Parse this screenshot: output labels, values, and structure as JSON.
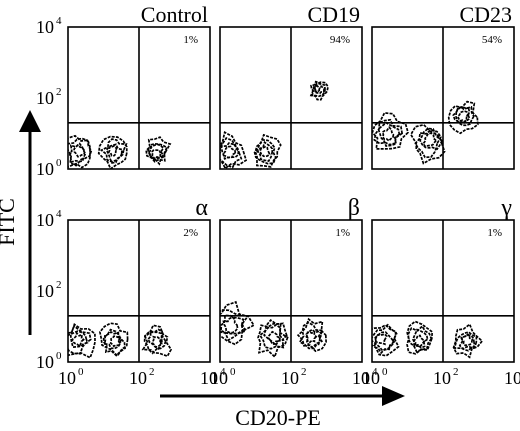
{
  "chart_data": {
    "type": "scatter",
    "xlabel": "CD20-PE",
    "ylabel": "FITC",
    "xscale": "log",
    "yscale": "log",
    "xlim": [
      1,
      10000
    ],
    "ylim": [
      1,
      10000
    ],
    "x_ticks": [
      {
        "base": "10",
        "exp": "0"
      },
      {
        "base": "10",
        "exp": "2"
      },
      {
        "base": "10",
        "exp": "4"
      }
    ],
    "y_ticks": [
      {
        "base": "10",
        "exp": "0"
      },
      {
        "base": "10",
        "exp": "2"
      },
      {
        "base": "10",
        "exp": "4"
      }
    ],
    "quadrant_gate": {
      "x": 100,
      "y": 20
    },
    "panels": [
      {
        "title": "Control",
        "upper_right_percent": "1%",
        "populations": [
          {
            "x": 2,
            "y": 3,
            "spread": 0.45
          },
          {
            "x": 20,
            "y": 3,
            "spread": 0.4
          },
          {
            "x": 300,
            "y": 3,
            "spread": 0.35
          }
        ]
      },
      {
        "title": "CD19",
        "upper_right_percent": "94%",
        "populations": [
          {
            "x": 2,
            "y": 3,
            "spread": 0.45
          },
          {
            "x": 20,
            "y": 3,
            "spread": 0.4
          },
          {
            "x": 600,
            "y": 160,
            "spread": 0.25
          }
        ]
      },
      {
        "title": "CD23",
        "upper_right_percent": "54%",
        "populations": [
          {
            "x": 3,
            "y": 10,
            "spread": 0.5
          },
          {
            "x": 40,
            "y": 6,
            "spread": 0.5
          },
          {
            "x": 400,
            "y": 30,
            "spread": 0.4
          }
        ]
      },
      {
        "title": "α",
        "upper_right_percent": "2%",
        "populations": [
          {
            "x": 2,
            "y": 4,
            "spread": 0.45
          },
          {
            "x": 20,
            "y": 4,
            "spread": 0.4
          },
          {
            "x": 300,
            "y": 4,
            "spread": 0.4
          }
        ]
      },
      {
        "title": "β",
        "upper_right_percent": "1%",
        "populations": [
          {
            "x": 2,
            "y": 12,
            "spread": 0.55
          },
          {
            "x": 30,
            "y": 5,
            "spread": 0.45
          },
          {
            "x": 400,
            "y": 5,
            "spread": 0.4
          }
        ]
      },
      {
        "title": "γ",
        "upper_right_percent": "1%",
        "populations": [
          {
            "x": 2,
            "y": 4,
            "spread": 0.45
          },
          {
            "x": 20,
            "y": 4,
            "spread": 0.4
          },
          {
            "x": 500,
            "y": 4,
            "spread": 0.4
          }
        ]
      }
    ]
  }
}
